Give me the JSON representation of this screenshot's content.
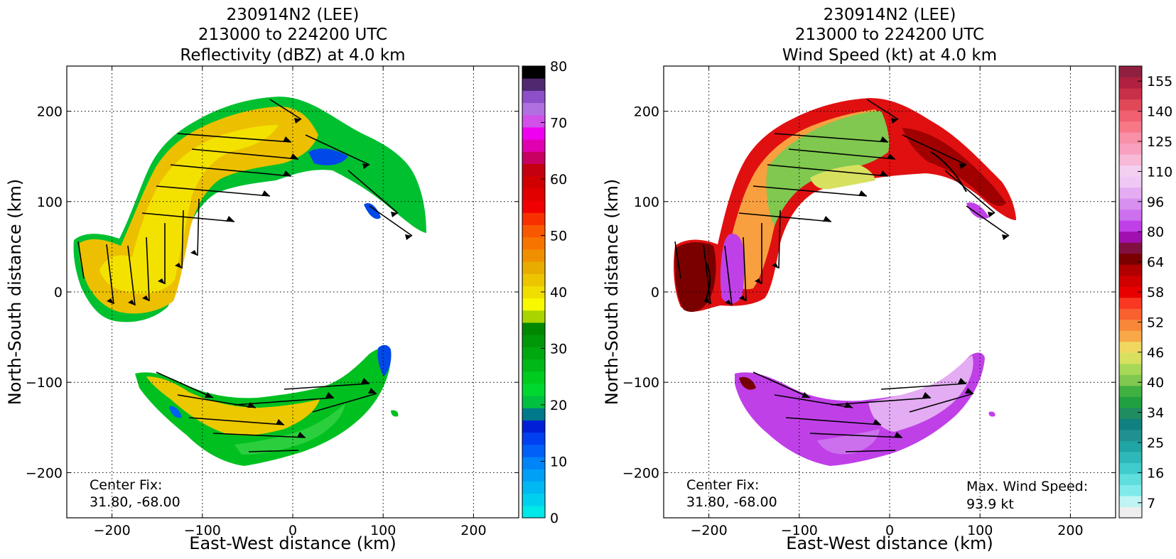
{
  "chart_data": [
    {
      "type": "heatmap",
      "title": [
        "230914N2 (LEE)",
        "213000 to 224200 UTC",
        "Reflectivity (dBZ) at 4.0 km"
      ],
      "xlabel": "East-West distance (km)",
      "ylabel": "North-South distance (km)",
      "xlim": [
        -250,
        250
      ],
      "ylim": [
        -250,
        250
      ],
      "xticks": [
        -200,
        -100,
        0,
        100,
        200
      ],
      "yticks": [
        -200,
        -100,
        0,
        100,
        200
      ],
      "xtick_labels": [
        "−200",
        "−100",
        "0",
        "100",
        "200"
      ],
      "ytick_labels": [
        "−200",
        "−100",
        "0",
        "100",
        "200"
      ],
      "grid": true,
      "annotation": [
        "Center Fix:",
        "31.80, -68.00"
      ],
      "colorbar": {
        "min": 0,
        "max": 80,
        "ticks": [
          0,
          10,
          20,
          30,
          40,
          50,
          60,
          70,
          80
        ],
        "tick_labels": [
          "0",
          "10",
          "20",
          "30",
          "40",
          "50",
          "60",
          "70",
          "80"
        ],
        "colors": [
          "#00e8e8",
          "#00d0ee",
          "#00b8f2",
          "#00a0f6",
          "#0084f8",
          "#0060f8",
          "#0040f0",
          "#0020d8",
          "#007a8a",
          "#00c040",
          "#00d830",
          "#00cc20",
          "#00b818",
          "#00a810",
          "#009808",
          "#008800",
          "#a8d400",
          "#f8f800",
          "#f0de00",
          "#ecc400",
          "#e8ac00",
          "#f09000",
          "#f87400",
          "#f85800",
          "#f83000",
          "#f00000",
          "#e00000",
          "#d00000",
          "#c40010",
          "#c80060",
          "#e000b0",
          "#f000f0",
          "#d050e8",
          "#b070e0",
          "#8e50c8",
          "#502870",
          "#000000"
        ]
      }
    },
    {
      "type": "heatmap",
      "title": [
        "230914N2 (LEE)",
        "213000 to 224200 UTC",
        "Wind Speed (kt) at 4.0 km"
      ],
      "xlabel": "East-West distance (km)",
      "ylabel": "North-South distance (km)",
      "xlim": [
        -250,
        250
      ],
      "ylim": [
        -250,
        250
      ],
      "xticks": [
        -200,
        -100,
        0,
        100,
        200
      ],
      "yticks": [
        -200,
        -100,
        0,
        100,
        200
      ],
      "xtick_labels": [
        "−200",
        "−100",
        "0",
        "100",
        "200"
      ],
      "ytick_labels": [
        "−200",
        "−100",
        "0",
        "100",
        "200"
      ],
      "grid": true,
      "annotation": [
        "Center Fix:",
        "31.80, -68.00"
      ],
      "max_annotation": [
        "Max. Wind Speed:",
        "93.9 kt"
      ],
      "max_wind_speed_kt": 93.9,
      "colorbar": {
        "ticks": [
          7,
          16,
          25,
          34,
          40,
          46,
          52,
          58,
          64,
          80,
          96,
          110,
          125,
          140,
          155
        ],
        "tick_labels": [
          "7",
          "16",
          "25",
          "34",
          "40",
          "46",
          "52",
          "58",
          "64",
          "80",
          "96",
          "110",
          "125",
          "140",
          "155"
        ],
        "colors": [
          "#eeeeee",
          "#c0f4f4",
          "#80eaea",
          "#60dede",
          "#40cccc",
          "#30b8b8",
          "#20a4a4",
          "#209090",
          "#108080",
          "#208c60",
          "#20a040",
          "#40b040",
          "#80c850",
          "#a8d858",
          "#d8e060",
          "#f0d860",
          "#f8a848",
          "#f88838",
          "#f86030",
          "#f83820",
          "#e80000",
          "#d00000",
          "#b00000",
          "#7a0000",
          "#801040",
          "#a010b0",
          "#c040e8",
          "#cc70ee",
          "#d890f0",
          "#e4acf2",
          "#f0c8f4",
          "#f4d0f0",
          "#f8b8d8",
          "#f8a0c0",
          "#f890a8",
          "#f87888",
          "#f06070",
          "#e04858",
          "#c83048",
          "#b02040",
          "#902040"
        ]
      }
    }
  ]
}
